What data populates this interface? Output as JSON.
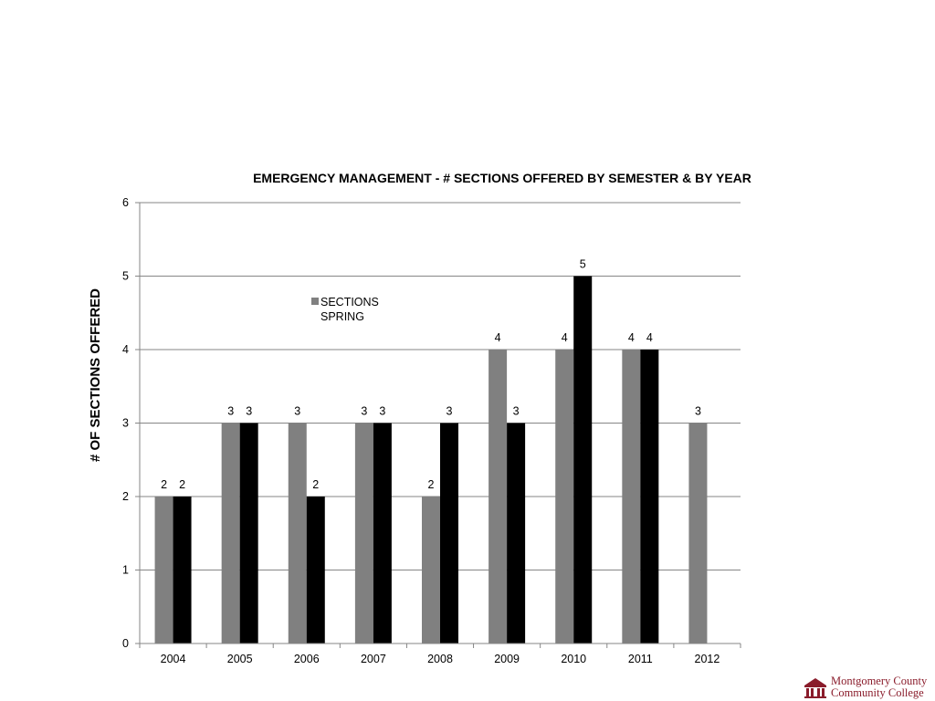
{
  "chart_data": {
    "type": "bar",
    "title": "EMERGENCY MANAGEMENT - # SECTIONS OFFERED BY SEMESTER & BY YEAR",
    "xlabel": "",
    "ylabel": "# OF SECTIONS OFFERED",
    "ylim": [
      0,
      6
    ],
    "yticks": [
      0,
      1,
      2,
      3,
      4,
      5,
      6
    ],
    "categories": [
      "2004",
      "2005",
      "2006",
      "2007",
      "2008",
      "2009",
      "2010",
      "2011",
      "2012"
    ],
    "series": [
      {
        "name": "SECTIONS",
        "color": "#808080",
        "values": [
          2,
          3,
          3,
          3,
          2,
          4,
          4,
          4,
          3
        ]
      },
      {
        "name": "SPRING",
        "color": "#000000",
        "values": [
          2,
          3,
          2,
          3,
          3,
          3,
          5,
          4,
          null
        ]
      }
    ],
    "grid": true,
    "legend": "upper-left inside plot"
  },
  "logo": {
    "line1": "Montgomery County",
    "line2": "Community College",
    "color": "#8a1c2b"
  }
}
